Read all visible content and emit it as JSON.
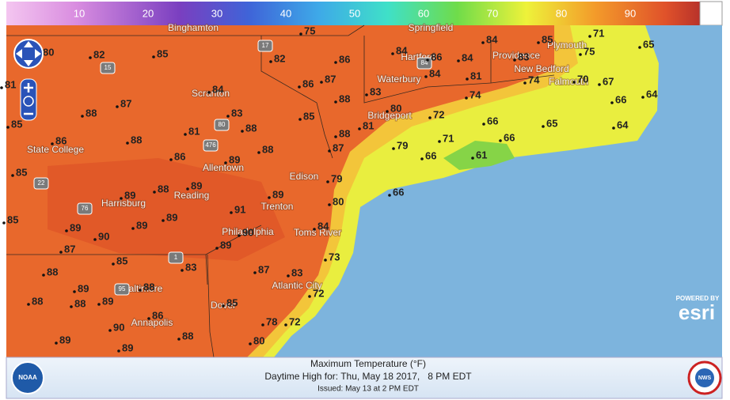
{
  "scale_labels": [
    10,
    20,
    30,
    40,
    50,
    60,
    70,
    80,
    90
  ],
  "temperatures": [
    75,
    80,
    82,
    85,
    82,
    86,
    84,
    86,
    84,
    84,
    85,
    71,
    65,
    75,
    83,
    86,
    87,
    88,
    83,
    84,
    81,
    74,
    70,
    67,
    74,
    66,
    64,
    84,
    87,
    88,
    83,
    85,
    80,
    72,
    66,
    65,
    64,
    85,
    86,
    88,
    81,
    88,
    88,
    81,
    87,
    79,
    71,
    66,
    88,
    86,
    89,
    66,
    61,
    85,
    79,
    66,
    88,
    89,
    89,
    89,
    80,
    85,
    89,
    89,
    89,
    91,
    90,
    84,
    90,
    89,
    87,
    73,
    85,
    83,
    87,
    88,
    83,
    89,
    88,
    72,
    88,
    88,
    89,
    85,
    86,
    78,
    72,
    90,
    88,
    89,
    80,
    89,
    81
  ],
  "places": [
    "Binghamton",
    "Springfield",
    "Hartford",
    "Providence",
    "Plymouth",
    "New Bedford",
    "Falmouth",
    "Waterbury",
    "Scranton",
    "Bridgeport",
    "State College",
    "Allentown",
    "Edison",
    "Reading",
    "Harrisburg",
    "Trenton",
    "Philadelphia",
    "Toms River",
    "Baltimore",
    "Atlantic City",
    "Dover",
    "Annapolis"
  ],
  "highways": [
    "15",
    "17",
    "84",
    "80",
    "476",
    "22",
    "76",
    "1",
    "95"
  ],
  "esri": {
    "powered_by": "POWERED BY",
    "brand": "esri"
  },
  "footer": {
    "title": "Maximum Temperature (°F)",
    "subtitle": "Daytime High for: Thu, May 18 2017,   8 PM EDT",
    "issued": "Issued: May 13 at 2 PM EDT",
    "left_logo": "NOAA",
    "right_logo": "NWS"
  }
}
